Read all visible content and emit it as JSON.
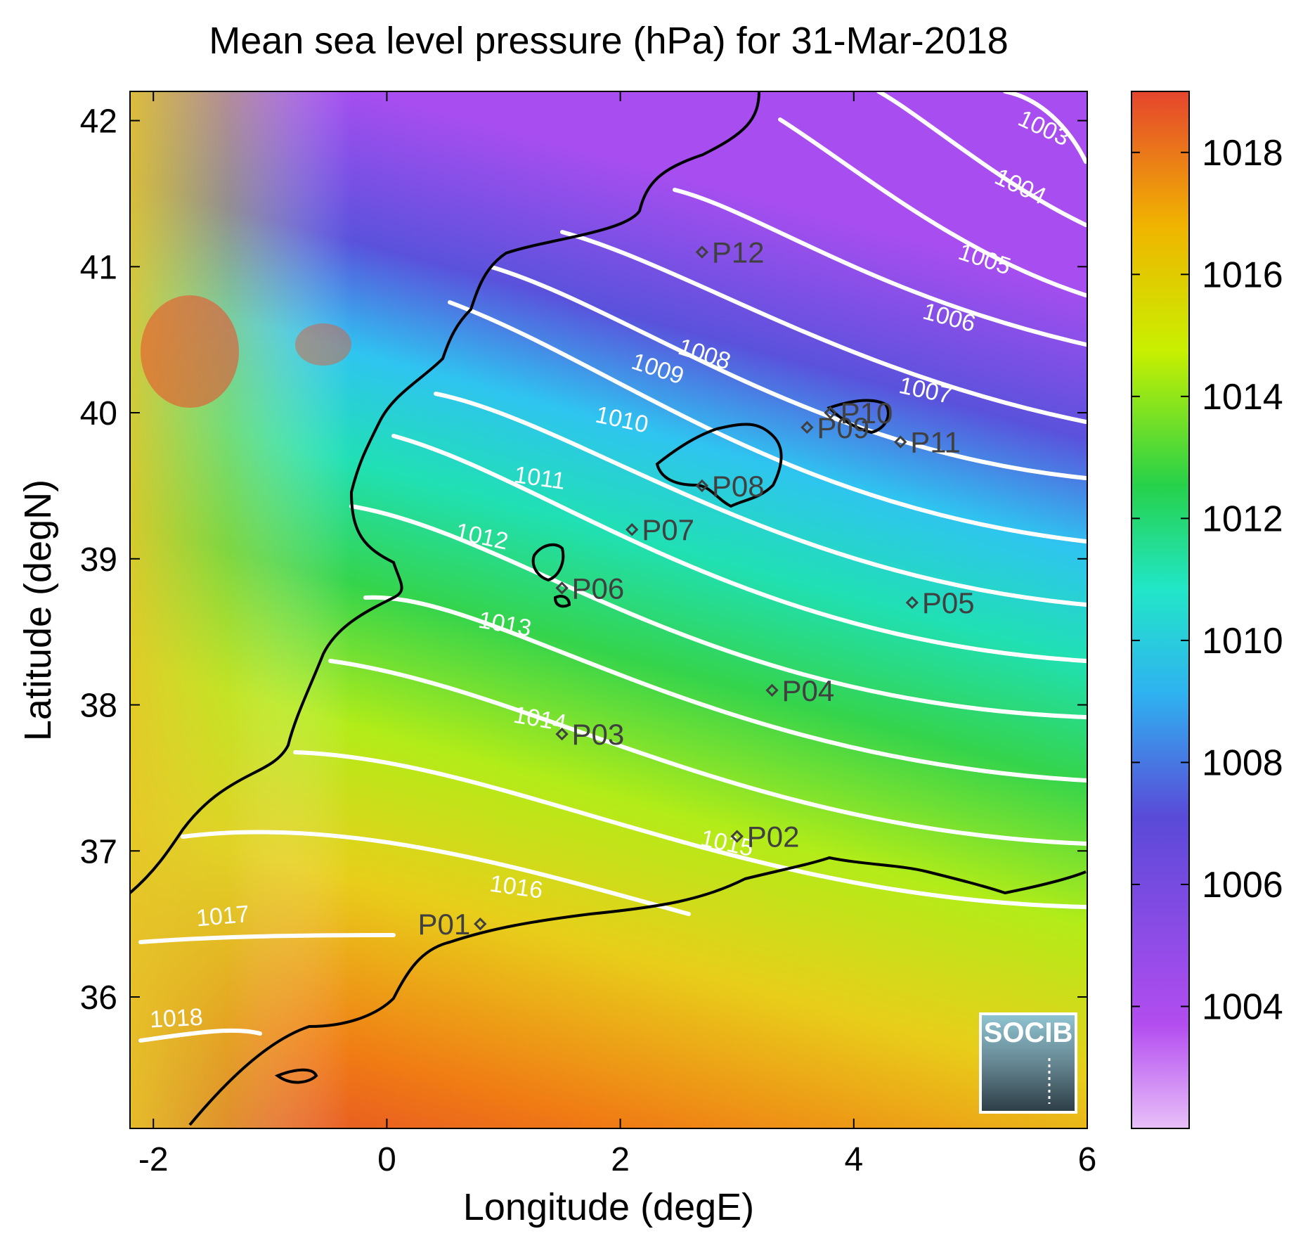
{
  "title": "Mean sea level pressure (hPa) for 31-Mar-2018",
  "xlabel": "Longitude (degE)",
  "ylabel": "Latitude (degN)",
  "x_ticks": [
    "-2",
    "0",
    "2",
    "4",
    "6"
  ],
  "y_ticks": [
    "42",
    "41",
    "40",
    "39",
    "38",
    "37",
    "36"
  ],
  "colorbar": {
    "ticks": [
      "1018",
      "1016",
      "1014",
      "1012",
      "1010",
      "1008",
      "1006",
      "1004"
    ],
    "range": [
      1002,
      1019
    ]
  },
  "logo": {
    "text": "SOCIB"
  },
  "chart_data": {
    "type": "heatmap",
    "title": "Mean sea level pressure (hPa) for 31-Mar-2018",
    "xlabel": "Longitude (degE)",
    "ylabel": "Latitude (degN)",
    "xlim": [
      -2.2,
      6
    ],
    "ylim": [
      35.1,
      42.2
    ],
    "colorbar_range": [
      1002,
      1019
    ],
    "contour_levels": [
      "1003",
      "1004",
      "1005",
      "1006",
      "1007",
      "1008",
      "1009",
      "1010",
      "1011",
      "1012",
      "1013",
      "1014",
      "1015",
      "1016",
      "1017",
      "1018"
    ],
    "stations": [
      {
        "name": "P01",
        "lon": 0.8,
        "lat": 36.5
      },
      {
        "name": "P02",
        "lon": 3.0,
        "lat": 37.1
      },
      {
        "name": "P03",
        "lon": 1.5,
        "lat": 37.8
      },
      {
        "name": "P04",
        "lon": 3.3,
        "lat": 38.1
      },
      {
        "name": "P05",
        "lon": 4.5,
        "lat": 38.7
      },
      {
        "name": "P06",
        "lon": 1.5,
        "lat": 38.8
      },
      {
        "name": "P07",
        "lon": 2.1,
        "lat": 39.2
      },
      {
        "name": "P08",
        "lon": 2.7,
        "lat": 39.5
      },
      {
        "name": "P09",
        "lon": 3.6,
        "lat": 39.9
      },
      {
        "name": "P10",
        "lon": 3.8,
        "lat": 40.0
      },
      {
        "name": "P11",
        "lon": 4.4,
        "lat": 39.8
      },
      {
        "name": "P12",
        "lon": 2.7,
        "lat": 41.1
      }
    ]
  }
}
